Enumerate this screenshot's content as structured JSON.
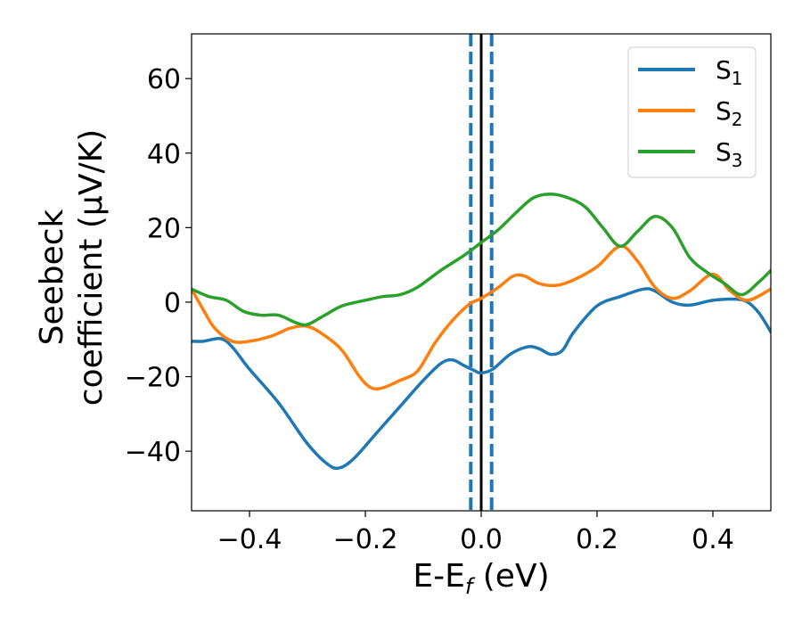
{
  "chart_data": {
    "type": "line",
    "xlabel": {
      "main": "E-E",
      "sub": "f",
      "unit": " (eV)"
    },
    "ylabel": {
      "line1": "Seebeck",
      "line2": "coefficient  (μV/K)"
    },
    "xlim": [
      -0.5,
      0.5
    ],
    "ylim": [
      -56,
      72
    ],
    "xticks": [
      -0.4,
      -0.2,
      0.0,
      0.2,
      0.4
    ],
    "xtick_labels": [
      "−0.4",
      "−0.2",
      "0.0",
      "0.2",
      "0.4"
    ],
    "yticks": [
      -40,
      -20,
      0,
      20,
      40,
      60
    ],
    "ytick_labels": [
      "−40",
      "−20",
      "0",
      "20",
      "40",
      "60"
    ],
    "grid": false,
    "legend_position": "top-right",
    "vlines": [
      {
        "x": -0.018,
        "style": "dashed",
        "color": "#1f77b4"
      },
      {
        "x": 0.0,
        "style": "solid",
        "color": "#000000"
      },
      {
        "x": 0.018,
        "style": "dashed",
        "color": "#1f77b4"
      }
    ],
    "series": [
      {
        "name": "S",
        "sub": "1",
        "color": "#1f77b4",
        "points": [
          [
            -0.5,
            -10.5
          ],
          [
            -0.48,
            -10.5
          ],
          [
            -0.45,
            -9.8
          ],
          [
            -0.43,
            -12
          ],
          [
            -0.4,
            -18
          ],
          [
            -0.35,
            -27
          ],
          [
            -0.3,
            -38
          ],
          [
            -0.265,
            -43.5
          ],
          [
            -0.245,
            -44.5
          ],
          [
            -0.22,
            -42
          ],
          [
            -0.18,
            -35
          ],
          [
            -0.14,
            -28
          ],
          [
            -0.1,
            -21
          ],
          [
            -0.07,
            -16.5
          ],
          [
            -0.05,
            -15.5
          ],
          [
            -0.03,
            -17
          ],
          [
            -0.01,
            -18.5
          ],
          [
            0.0,
            -19
          ],
          [
            0.02,
            -18
          ],
          [
            0.05,
            -14
          ],
          [
            0.08,
            -12
          ],
          [
            0.1,
            -12.5
          ],
          [
            0.12,
            -14
          ],
          [
            0.14,
            -13
          ],
          [
            0.16,
            -8
          ],
          [
            0.2,
            -1
          ],
          [
            0.24,
            1.5
          ],
          [
            0.28,
            3.5
          ],
          [
            0.3,
            3
          ],
          [
            0.33,
            0
          ],
          [
            0.36,
            -0.8
          ],
          [
            0.4,
            0.5
          ],
          [
            0.44,
            0.8
          ],
          [
            0.46,
            0
          ],
          [
            0.48,
            -3
          ],
          [
            0.5,
            -8
          ]
        ]
      },
      {
        "name": "S",
        "sub": "2",
        "color": "#ff7f0e",
        "points": [
          [
            -0.5,
            3.5
          ],
          [
            -0.48,
            -2
          ],
          [
            -0.46,
            -7
          ],
          [
            -0.43,
            -10.5
          ],
          [
            -0.4,
            -10.5
          ],
          [
            -0.36,
            -9
          ],
          [
            -0.33,
            -7
          ],
          [
            -0.3,
            -6.5
          ],
          [
            -0.27,
            -9
          ],
          [
            -0.24,
            -13
          ],
          [
            -0.21,
            -20
          ],
          [
            -0.19,
            -23
          ],
          [
            -0.17,
            -23
          ],
          [
            -0.14,
            -21
          ],
          [
            -0.11,
            -18.5
          ],
          [
            -0.08,
            -11
          ],
          [
            -0.05,
            -5
          ],
          [
            -0.02,
            -0.5
          ],
          [
            0.0,
            1
          ],
          [
            0.03,
            4
          ],
          [
            0.055,
            7
          ],
          [
            0.075,
            7
          ],
          [
            0.1,
            5
          ],
          [
            0.13,
            4.5
          ],
          [
            0.16,
            6
          ],
          [
            0.2,
            9.5
          ],
          [
            0.24,
            15
          ],
          [
            0.27,
            11
          ],
          [
            0.3,
            4
          ],
          [
            0.33,
            1
          ],
          [
            0.36,
            3
          ],
          [
            0.4,
            7.5
          ],
          [
            0.43,
            3
          ],
          [
            0.46,
            0.5
          ],
          [
            0.5,
            3.5
          ]
        ]
      },
      {
        "name": "S",
        "sub": "3",
        "color": "#2ca02c",
        "points": [
          [
            -0.5,
            3.5
          ],
          [
            -0.47,
            1.5
          ],
          [
            -0.44,
            0.5
          ],
          [
            -0.41,
            -2.5
          ],
          [
            -0.38,
            -3.5
          ],
          [
            -0.35,
            -3.5
          ],
          [
            -0.32,
            -5.5
          ],
          [
            -0.3,
            -6
          ],
          [
            -0.27,
            -3.5
          ],
          [
            -0.24,
            -1
          ],
          [
            -0.2,
            0.5
          ],
          [
            -0.17,
            1.5
          ],
          [
            -0.14,
            2
          ],
          [
            -0.11,
            4
          ],
          [
            -0.07,
            8.5
          ],
          [
            -0.03,
            12.5
          ],
          [
            0.0,
            16
          ],
          [
            0.03,
            19.5
          ],
          [
            0.06,
            24
          ],
          [
            0.09,
            28
          ],
          [
            0.12,
            29
          ],
          [
            0.15,
            28
          ],
          [
            0.18,
            25.5
          ],
          [
            0.21,
            20
          ],
          [
            0.24,
            15
          ],
          [
            0.27,
            19
          ],
          [
            0.3,
            23
          ],
          [
            0.33,
            20
          ],
          [
            0.36,
            12
          ],
          [
            0.39,
            8
          ],
          [
            0.42,
            5
          ],
          [
            0.45,
            2
          ],
          [
            0.48,
            5.5
          ],
          [
            0.5,
            8.5
          ]
        ]
      }
    ]
  }
}
